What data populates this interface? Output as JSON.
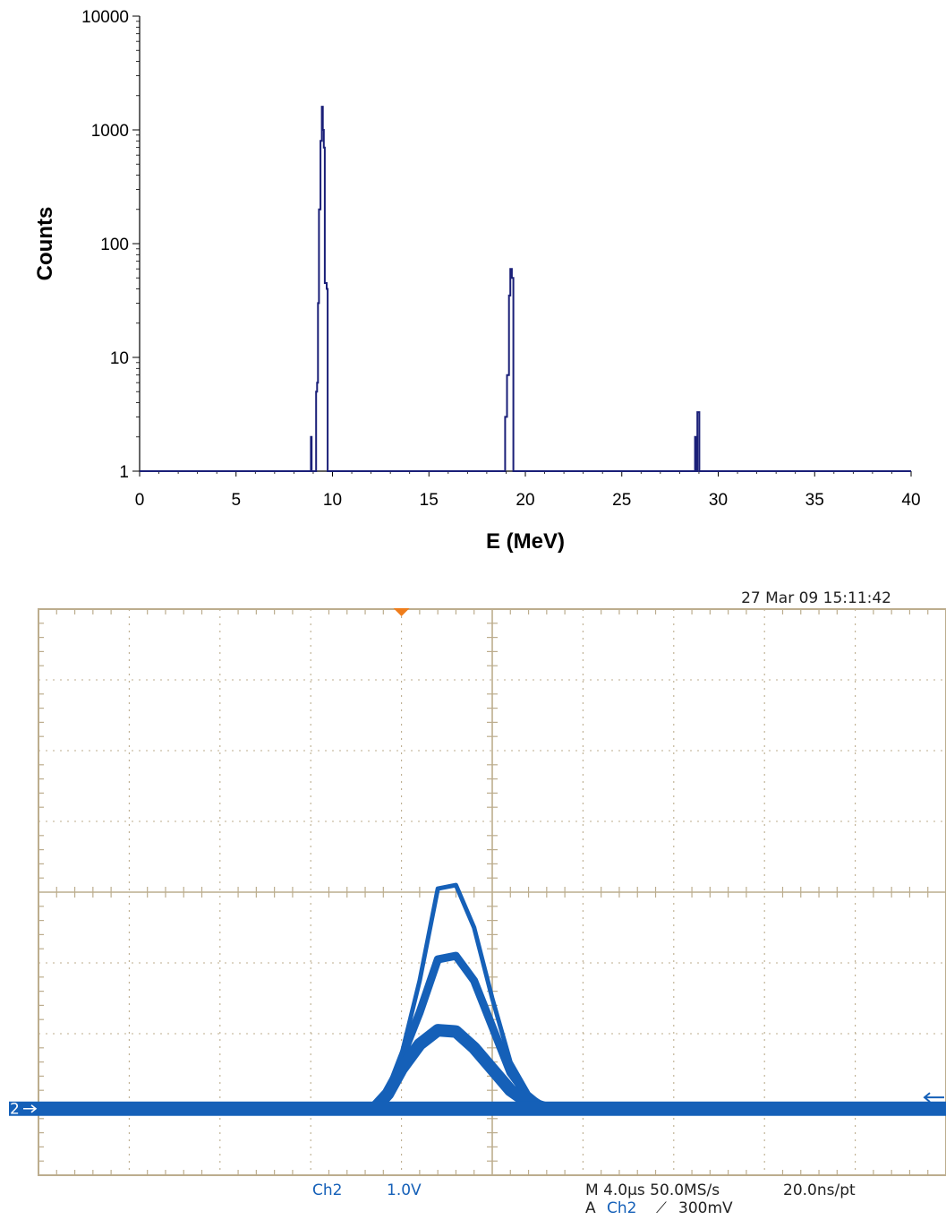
{
  "chart_data": [
    {
      "type": "line",
      "title": "",
      "xlabel": "E (MeV)",
      "ylabel": "Counts",
      "xlim": [
        0,
        40
      ],
      "ylim": [
        1,
        10000
      ],
      "yscale": "log",
      "grid": false,
      "x_ticks": [
        "0",
        "5",
        "10",
        "15",
        "20",
        "25",
        "30",
        "35",
        "40"
      ],
      "y_ticks": [
        "1",
        "10",
        "100",
        "1000",
        "10000"
      ],
      "color": "#1a1f78",
      "series": [
        {
          "x": [
            8.88,
            8.88,
            8.92,
            8.92,
            9.15,
            9.15,
            9.2,
            9.2,
            9.25,
            9.25,
            9.3,
            9.3,
            9.38,
            9.38,
            9.45,
            9.45,
            9.5,
            9.5,
            9.55,
            9.55,
            9.6,
            9.6,
            9.7,
            9.7,
            9.75,
            9.75,
            18.95,
            18.95,
            19.05,
            19.05,
            19.15,
            19.15,
            19.22,
            19.22,
            19.3,
            19.3,
            19.38,
            19.38,
            28.8,
            28.8,
            28.86,
            28.86,
            28.92,
            28.92,
            29.02,
            29.02
          ],
          "y": [
            1,
            2,
            2,
            1,
            1,
            5,
            5,
            6,
            6,
            30,
            30,
            200,
            200,
            800,
            800,
            1600,
            1600,
            1000,
            1000,
            700,
            700,
            45,
            45,
            40,
            40,
            1,
            1,
            3,
            3,
            7,
            7,
            35,
            35,
            60,
            60,
            50,
            50,
            1,
            1,
            2,
            2,
            1,
            1,
            3.3,
            3.3,
            1
          ]
        }
      ]
    },
    {
      "type": "line",
      "title": "",
      "xlabel": "",
      "ylabel": "",
      "grid": true,
      "timestamp": "27 Mar 09 15:11:42",
      "channel_marker": "2",
      "channel": "Ch2",
      "volts_per_div": "1.0V",
      "time_base": "M 4.0µs 50.0MS/s",
      "sample_interval": "20.0ns/pt",
      "trigger_source_prefix": "A",
      "trigger_channel": "Ch2",
      "trigger_slope": "⟋",
      "trigger_level": "300mV",
      "grid_color": "#bcad8e",
      "trace_color": "#1560b8",
      "outline_color": "#0fa3a3",
      "trigger_marker_color": "#ef7d1c",
      "xlim": [
        0,
        10
      ],
      "ylim": [
        -4,
        4
      ],
      "series": [
        {
          "name": "",
          "x": [
            0,
            3.7,
            3.85,
            4.0,
            4.2,
            4.4,
            4.6,
            4.8,
            5.0,
            5.2,
            5.4,
            5.6,
            10
          ],
          "y": [
            -3.06,
            -3.06,
            -2.85,
            -2.3,
            -1.25,
            0.05,
            0.1,
            -0.5,
            -1.5,
            -2.4,
            -2.85,
            -3.06,
            -3.06
          ]
        },
        {
          "name": "",
          "x": [
            0,
            3.7,
            3.85,
            4.0,
            4.2,
            4.4,
            4.6,
            4.8,
            5.0,
            5.2,
            5.4,
            5.6,
            10
          ],
          "y": [
            -3.06,
            -3.06,
            -2.85,
            -2.35,
            -1.7,
            -0.95,
            -0.9,
            -1.25,
            -1.9,
            -2.55,
            -2.9,
            -3.06,
            -3.06
          ]
        },
        {
          "name": "",
          "x": [
            0,
            3.7,
            3.85,
            4.0,
            4.2,
            4.4,
            4.6,
            4.8,
            5.0,
            5.2,
            5.4,
            5.6,
            10
          ],
          "y": [
            -3.06,
            -3.06,
            -2.85,
            -2.5,
            -2.15,
            -1.95,
            -1.97,
            -2.2,
            -2.5,
            -2.8,
            -2.98,
            -3.06,
            -3.06
          ]
        }
      ]
    }
  ]
}
